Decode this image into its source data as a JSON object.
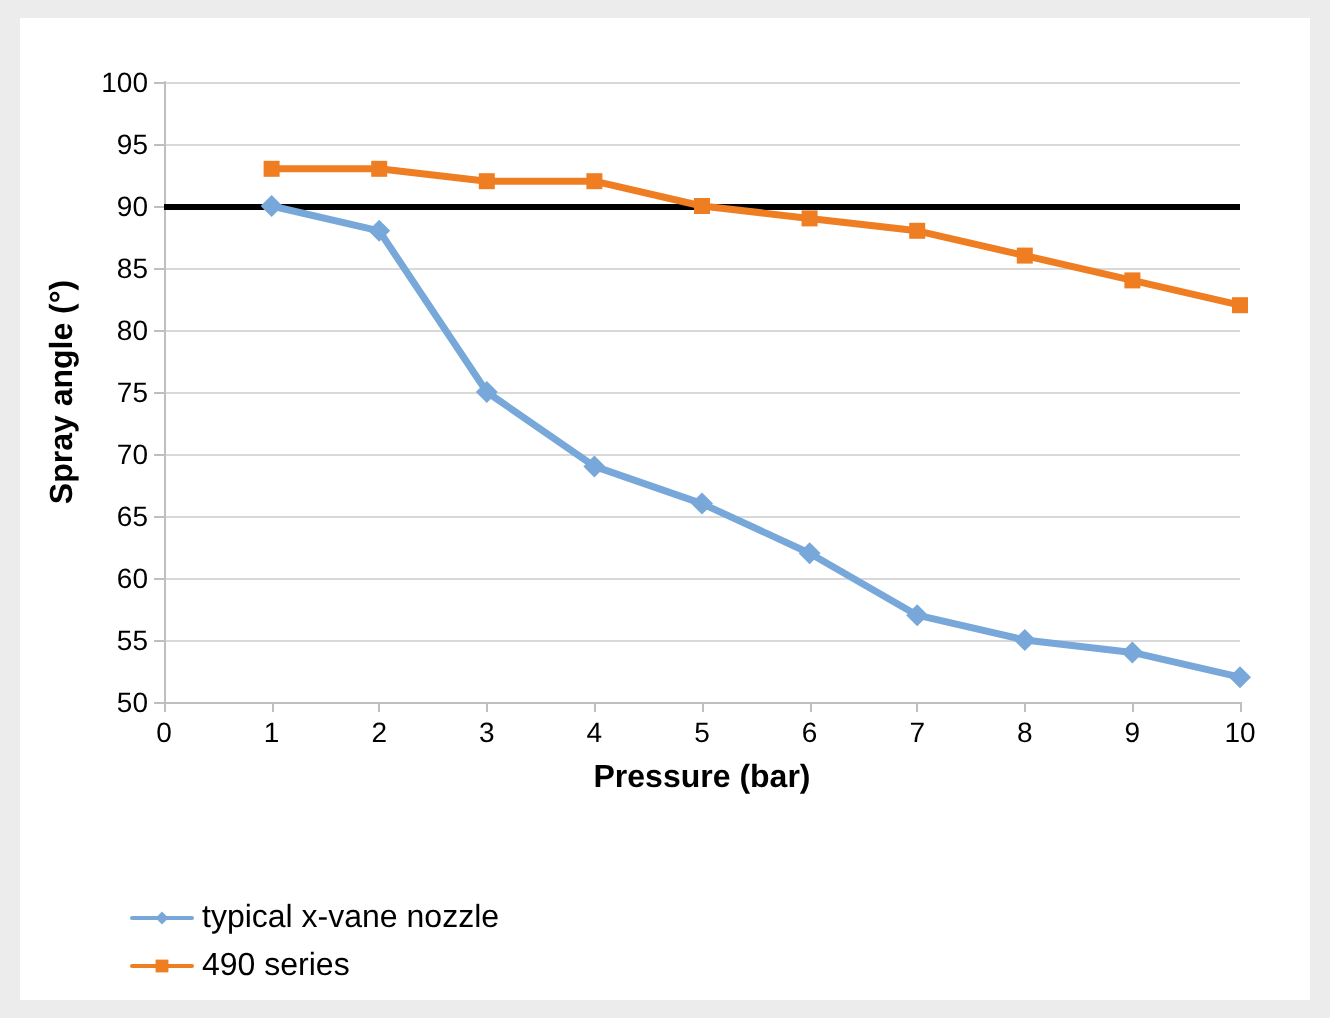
{
  "chart_data": {
    "type": "line",
    "xlabel": "Pressure (bar)",
    "ylabel": "Spray angle (°)",
    "x": [
      1,
      2,
      3,
      4,
      5,
      6,
      7,
      8,
      9,
      10
    ],
    "series": [
      {
        "name": "typical x-vane nozzle",
        "color": "#78a7d9",
        "marker": "diamond",
        "values": [
          90,
          88,
          75,
          69,
          66,
          62,
          57,
          55,
          54,
          52
        ]
      },
      {
        "name": "490 series",
        "color": "#ef7d22",
        "marker": "square",
        "values": [
          93,
          93,
          92,
          92,
          90,
          89,
          88,
          86,
          84,
          82
        ]
      }
    ],
    "xlim": [
      0,
      10
    ],
    "xticks": [
      0,
      1,
      2,
      3,
      4,
      5,
      6,
      7,
      8,
      9,
      10
    ],
    "ylim": [
      50,
      100
    ],
    "yticks": [
      50,
      55,
      60,
      65,
      70,
      75,
      80,
      85,
      90,
      95,
      100
    ],
    "grid": "y",
    "legend": "bottom left",
    "ref_lines": [
      {
        "axis": "y",
        "value": 90,
        "color": "#000000"
      }
    ]
  }
}
